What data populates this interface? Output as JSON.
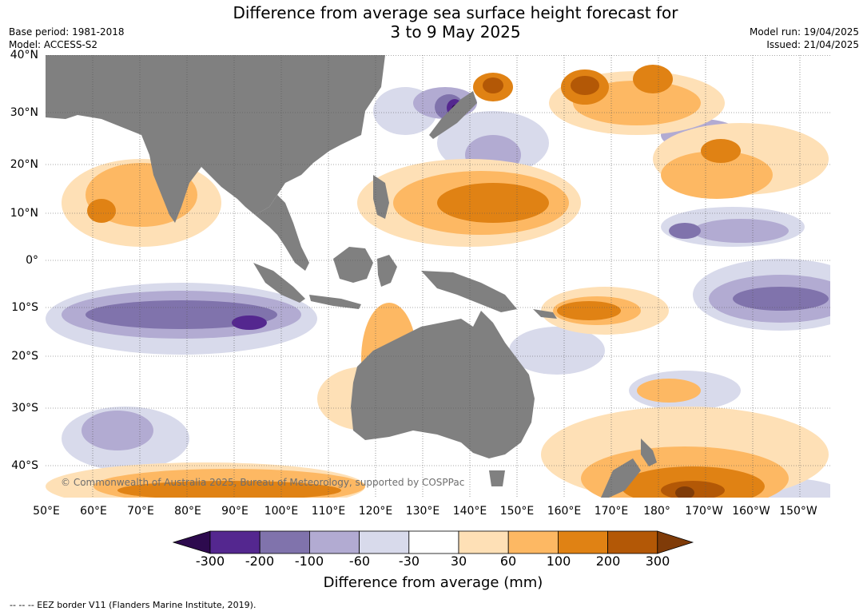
{
  "title_line1": "Difference from average sea surface height forecast for",
  "title_line2": "3 to 9 May 2025",
  "base_period": "Base period: 1981-2018",
  "model": "Model: ACCESS-S2",
  "model_run": "Model run: 19/04/2025",
  "issued": "Issued: 21/04/2025",
  "latitude_labels": [
    "40°N",
    "30°N",
    "20°N",
    "10°N",
    "0°",
    "10°S",
    "20°S",
    "30°S",
    "40°S"
  ],
  "longitude_labels": [
    "50°E",
    "60°E",
    "70°E",
    "80°E",
    "90°E",
    "100°E",
    "110°E",
    "120°E",
    "130°E",
    "140°E",
    "150°E",
    "160°E",
    "170°E",
    "180°",
    "170°W",
    "160°W",
    "150°W"
  ],
  "copyright": "© Commonwealth of Australia 2025, Bureau of Meteorology, supported by COSPPac",
  "colorbar": {
    "label": "Difference from average (mm)",
    "ticks": [
      "-300",
      "-200",
      "-100",
      "-60",
      "-30",
      "30",
      "60",
      "100",
      "200",
      "300"
    ],
    "colors": [
      "#2d0a4e",
      "#54278f",
      "#8073ac",
      "#b2abd2",
      "#d8daeb",
      "#ffffff",
      "#fee0b6",
      "#fdb863",
      "#e08214",
      "#b35806",
      "#7f3b08"
    ]
  },
  "footnote": "-- -- -- EEZ border V11 (Flanders Marine Institute, 2019).",
  "map": {
    "land_color": "#808080",
    "regions": [
      "Asia",
      "India",
      "Southeast Asia",
      "Japan",
      "Maritime Continent",
      "Papua New Guinea",
      "Australia",
      "New Zealand"
    ]
  }
}
